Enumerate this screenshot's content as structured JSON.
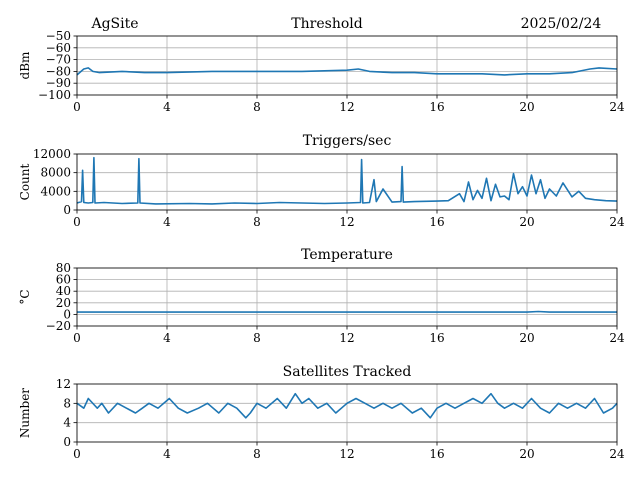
{
  "header": {
    "left": "AgSite",
    "center": "Threshold",
    "right": "2025/02/24"
  },
  "chart_data": [
    {
      "type": "line",
      "title": "Threshold",
      "ylabel": "dBm",
      "xlim": [
        0,
        24
      ],
      "ylim": [
        -100,
        -50
      ],
      "xticks": [
        "0",
        "4",
        "8",
        "12",
        "16",
        "20",
        "24"
      ],
      "yticks": [
        "−50",
        "−60",
        "−70",
        "−80",
        "−90",
        "−100"
      ],
      "grid": true,
      "color": "#1f77b4",
      "series": [
        {
          "x": [
            0,
            0.3,
            0.5,
            0.7,
            1,
            2,
            3,
            4,
            6,
            8,
            10,
            12,
            12.5,
            13,
            14,
            15,
            16,
            17,
            18,
            19,
            20,
            21,
            22,
            22.8,
            23.2,
            24
          ],
          "values": [
            -83,
            -78,
            -77,
            -80,
            -81,
            -80,
            -81,
            -81,
            -80,
            -80,
            -80,
            -79,
            -78,
            -80,
            -81,
            -81,
            -82,
            -82,
            -82,
            -83,
            -82,
            -82,
            -81,
            -78,
            -77,
            -78
          ]
        }
      ]
    },
    {
      "type": "line",
      "title": "Triggers/sec",
      "ylabel": "Count",
      "xlim": [
        0,
        24
      ],
      "ylim": [
        0,
        12000
      ],
      "xticks": [
        "0",
        "4",
        "8",
        "12",
        "16",
        "20",
        "24"
      ],
      "yticks": [
        "12000",
        "8000",
        "4000",
        "0"
      ],
      "grid": true,
      "color": "#1f77b4",
      "series": [
        {
          "x": [
            0,
            0.2,
            0.25,
            0.3,
            0.5,
            0.7,
            0.75,
            0.8,
            1.2,
            2,
            2.7,
            2.75,
            2.8,
            3.5,
            5,
            6,
            7,
            8,
            9,
            10,
            11,
            12,
            12.6,
            12.65,
            12.7,
            13,
            13.2,
            13.3,
            13.6,
            14,
            14.4,
            14.45,
            14.5,
            15,
            16,
            16.5,
            17,
            17.2,
            17.4,
            17.6,
            17.8,
            18,
            18.2,
            18.4,
            18.6,
            18.8,
            19,
            19.2,
            19.4,
            19.6,
            19.8,
            20,
            20.2,
            20.4,
            20.6,
            20.8,
            21,
            21.3,
            21.6,
            22,
            22.3,
            22.6,
            23,
            23.5,
            24
          ],
          "values": [
            1500,
            1800,
            8500,
            1600,
            1500,
            1600,
            11200,
            1500,
            1600,
            1400,
            1500,
            11000,
            1500,
            1300,
            1400,
            1300,
            1500,
            1400,
            1600,
            1500,
            1400,
            1500,
            1600,
            10800,
            1500,
            1600,
            6500,
            1800,
            4500,
            1700,
            1800,
            9300,
            1700,
            1800,
            1900,
            2000,
            3500,
            1800,
            6000,
            2200,
            4200,
            2500,
            6800,
            2000,
            5500,
            2800,
            3000,
            2200,
            7800,
            3500,
            5000,
            3000,
            7500,
            3500,
            6500,
            2500,
            4500,
            3000,
            5800,
            2800,
            4000,
            2500,
            2200,
            2000,
            1900
          ]
        }
      ]
    },
    {
      "type": "line",
      "title": "Temperature",
      "ylabel": "°C",
      "xlim": [
        0,
        24
      ],
      "ylim": [
        -20,
        80
      ],
      "xticks": [
        "0",
        "4",
        "8",
        "12",
        "16",
        "20",
        "24"
      ],
      "yticks": [
        "80",
        "60",
        "40",
        "20",
        "0",
        "−20"
      ],
      "grid": true,
      "color": "#1f77b4",
      "series": [
        {
          "x": [
            0,
            4,
            8,
            12,
            16,
            20,
            20.5,
            21,
            22,
            24
          ],
          "values": [
            4,
            4,
            4,
            4,
            4,
            4,
            5,
            4,
            4,
            4
          ]
        }
      ]
    },
    {
      "type": "line",
      "title": "Satellites Tracked",
      "ylabel": "Number",
      "xlim": [
        0,
        24
      ],
      "ylim": [
        0,
        12
      ],
      "xticks": [
        "0",
        "4",
        "8",
        "12",
        "16",
        "20",
        "24"
      ],
      "yticks": [
        "12",
        "8",
        "4",
        "0"
      ],
      "grid": true,
      "color": "#1f77b4",
      "series": [
        {
          "x": [
            0,
            0.3,
            0.5,
            0.9,
            1.1,
            1.4,
            1.8,
            2.2,
            2.6,
            2.9,
            3.2,
            3.6,
            4.1,
            4.5,
            4.9,
            5.4,
            5.8,
            6.3,
            6.7,
            7.1,
            7.5,
            7.7,
            8,
            8.4,
            8.9,
            9.3,
            9.7,
            10,
            10.3,
            10.7,
            11.1,
            11.5,
            12,
            12.4,
            12.8,
            13.2,
            13.6,
            14,
            14.4,
            14.9,
            15.3,
            15.7,
            16,
            16.4,
            16.8,
            17.2,
            17.6,
            18,
            18.4,
            18.7,
            19,
            19.4,
            19.8,
            20.2,
            20.6,
            21,
            21.4,
            21.8,
            22.2,
            22.6,
            23,
            23.4,
            23.8,
            24
          ],
          "values": [
            8,
            7,
            9,
            7,
            8,
            6,
            8,
            7,
            6,
            7,
            8,
            7,
            9,
            7,
            6,
            7,
            8,
            6,
            8,
            7,
            5,
            6,
            8,
            7,
            9,
            7,
            10,
            8,
            9,
            7,
            8,
            6,
            8,
            9,
            8,
            7,
            8,
            7,
            8,
            6,
            7,
            5,
            7,
            8,
            7,
            8,
            9,
            8,
            10,
            8,
            7,
            8,
            7,
            9,
            7,
            6,
            8,
            7,
            8,
            7,
            9,
            6,
            7,
            8
          ]
        }
      ]
    }
  ]
}
